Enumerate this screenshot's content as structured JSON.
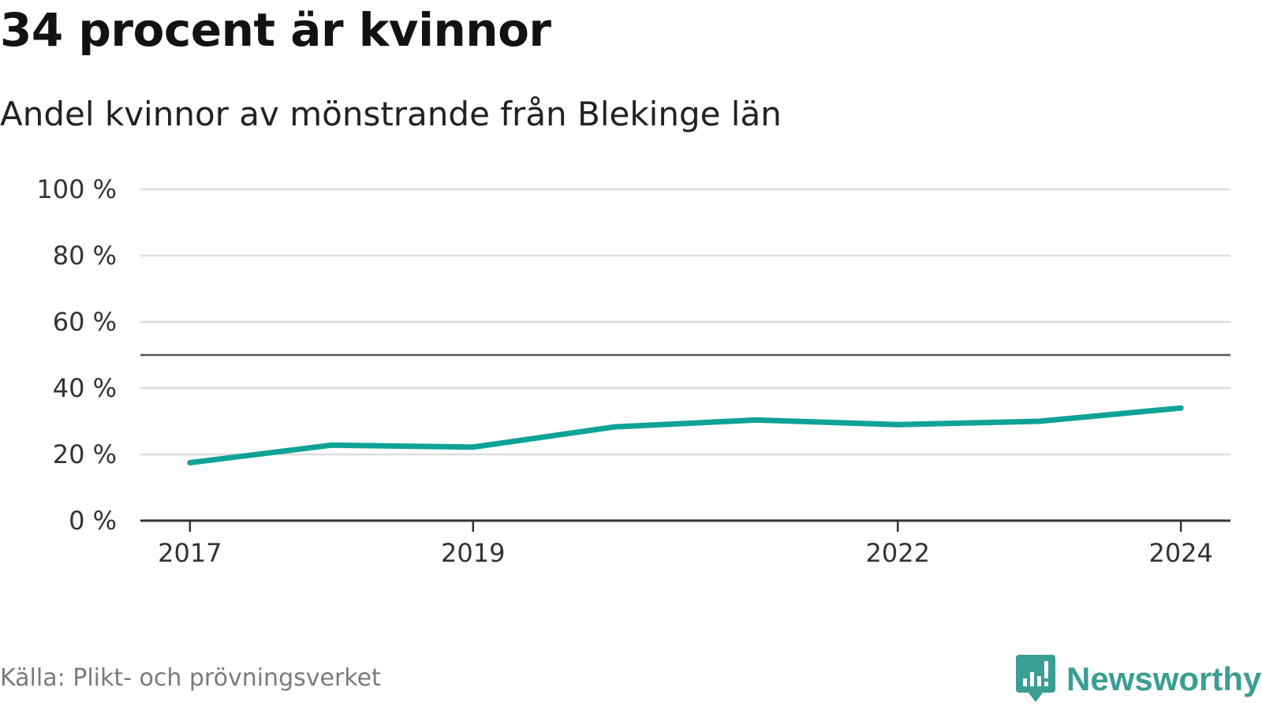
{
  "header": {
    "title": "34 procent är kvinnor",
    "subtitle": "Andel kvinnor av mönstrande från Blekinge län"
  },
  "footer": {
    "source": "Källa: Plikt- och prövningsverket",
    "brand": "Newsworthy"
  },
  "colors": {
    "line": "#0fa396",
    "grid": "#dddddd",
    "reference": "#555555",
    "axis": "#333333",
    "brand": "#3a9e93"
  },
  "chart_data": {
    "type": "line",
    "title": "34 procent är kvinnor",
    "subtitle": "Andel kvinnor av mönstrande från Blekinge län",
    "xlabel": "",
    "ylabel": "",
    "x": [
      2017,
      2018,
      2019,
      2020,
      2021,
      2022,
      2023,
      2024
    ],
    "x_tick_values": [
      2017,
      2019,
      2022,
      2024
    ],
    "x_tick_labels": [
      "2017",
      "2019",
      "2022",
      "2024"
    ],
    "xlim": [
      2016.65,
      2024.35
    ],
    "ylim": [
      0,
      100
    ],
    "y_tick_values": [
      0,
      20,
      40,
      60,
      80,
      100
    ],
    "y_tick_labels": [
      "0 %",
      "20 %",
      "40 %",
      "60 %",
      "80 %",
      "100 %"
    ],
    "reference_line": 50,
    "grid": true,
    "series": [
      {
        "name": "Andel kvinnor",
        "values": [
          17.5,
          22.8,
          22.2,
          28.3,
          30.4,
          29.0,
          30.0,
          34.0
        ]
      }
    ]
  }
}
